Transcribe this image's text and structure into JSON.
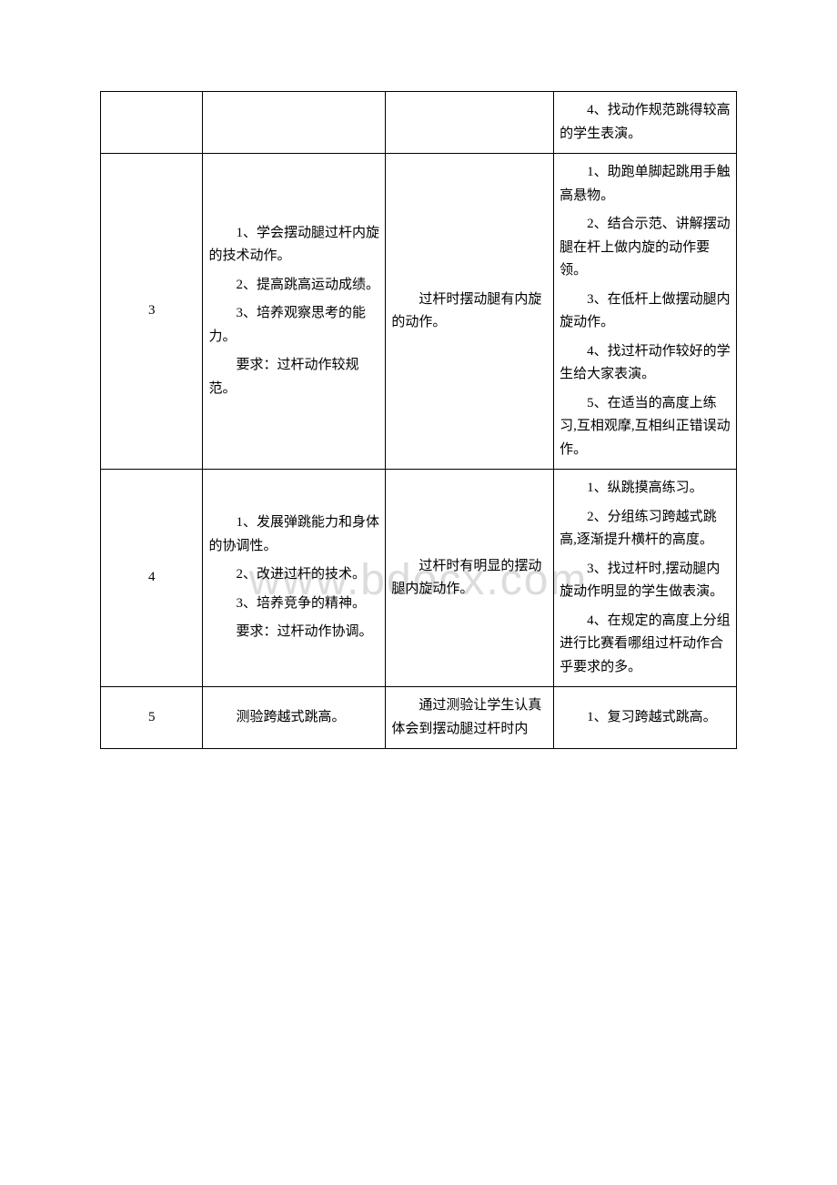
{
  "watermark": "www.bdocx.com",
  "table": {
    "columns": [
      "col-num",
      "col-obj",
      "col-key",
      "col-step"
    ],
    "rows": [
      {
        "num": "",
        "objectives": [],
        "keypoint": "",
        "steps": [
          "4、找动作规范跳得较高的学生表演。"
        ]
      },
      {
        "num": "3",
        "objectives": [
          "1、学会摆动腿过杆内旋的技术动作。",
          "2、提高跳高运动成绩。",
          "3、培养观察思考的能力。",
          "要求：过杆动作较规范。"
        ],
        "keypoint": "过杆时摆动腿有内旋的动作。",
        "steps": [
          "1、助跑单脚起跳用手触高悬物。",
          "2、结合示范、讲解摆动腿在杆上做内旋的动作要领。",
          "3、在低杆上做摆动腿内旋动作。",
          "4、找过杆动作较好的学生给大家表演。",
          "5、在适当的高度上练习,互相观摩,互相纠正错误动作。"
        ]
      },
      {
        "num": "4",
        "objectives": [
          "1、发展弹跳能力和身体的协调性。",
          "2、改进过杆的技术。",
          "3、培养竞争的精神。",
          "要求：过杆动作协调。"
        ],
        "keypoint": "过杆时有明显的摆动腿内旋动作。",
        "steps": [
          "1、纵跳摸高练习。",
          "2、分组练习跨越式跳高,逐渐提升横杆的高度。",
          "3、找过杆时,摆动腿内旋动作明显的学生做表演。",
          "4、在规定的高度上分组进行比赛看哪组过杆动作合乎要求的多。"
        ]
      },
      {
        "num": "5",
        "objectives": [
          "测验跨越式跳高。"
        ],
        "keypoint": "通过测验让学生认真体会到摆动腿过杆时内",
        "steps": [
          "1、复习跨越式跳高。"
        ]
      }
    ]
  },
  "style": {
    "text_color": "#000000",
    "border_color": "#000000",
    "background": "#ffffff",
    "watermark_color": "#dcdcdc",
    "font_size": 15,
    "watermark_font_size": 48
  }
}
